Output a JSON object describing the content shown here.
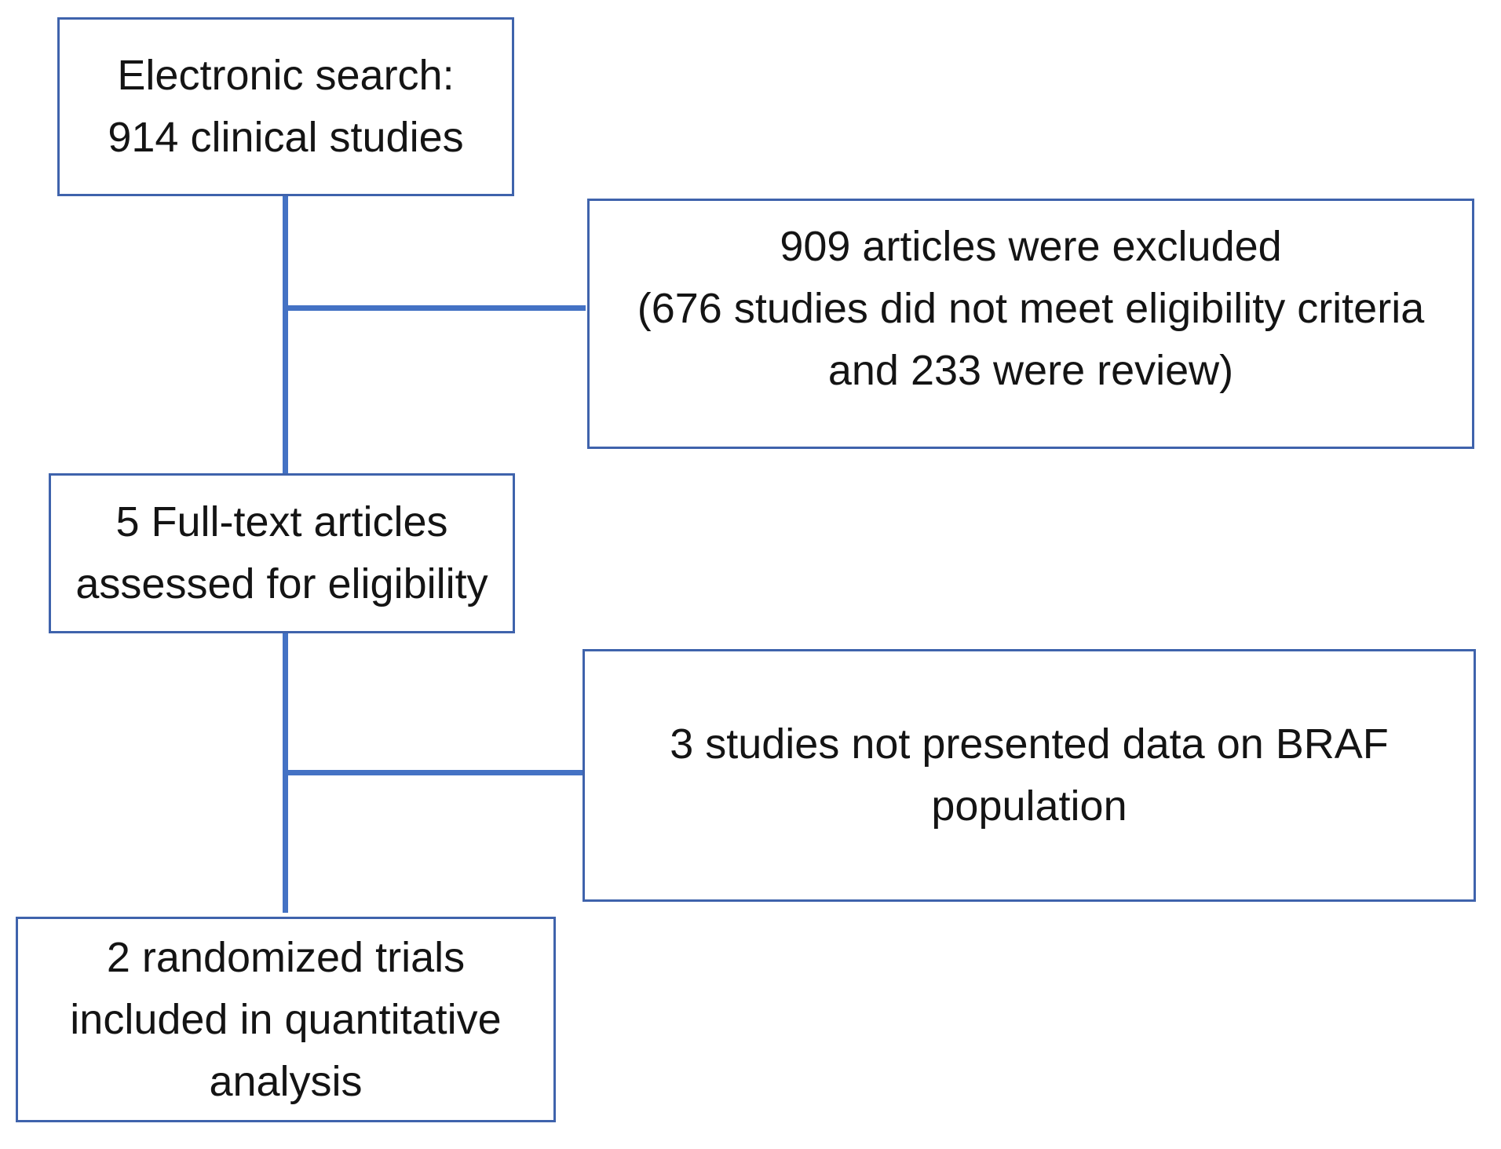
{
  "flowchart": {
    "colors": {
      "box_border": "#3f63ac",
      "connector": "#4472c4",
      "text": "#141414",
      "background": "#ffffff"
    },
    "boxes": [
      {
        "name": "electronic-search",
        "lines": [
          "Electronic search:",
          "914 clinical studies"
        ]
      },
      {
        "name": "articles-excluded",
        "lines": [
          "909 articles were excluded",
          "(676 studies did not meet eligibility criteria",
          "and 233 were review)"
        ]
      },
      {
        "name": "full-text-assessed",
        "lines": [
          "5 Full-text articles",
          "assessed for eligibility"
        ]
      },
      {
        "name": "studies-not-presented-braf",
        "lines": [
          "3 studies not presented data on BRAF",
          "population"
        ]
      },
      {
        "name": "randomized-trials-included",
        "lines": [
          "2 randomized trials",
          "included in quantitative",
          "analysis"
        ]
      }
    ]
  }
}
